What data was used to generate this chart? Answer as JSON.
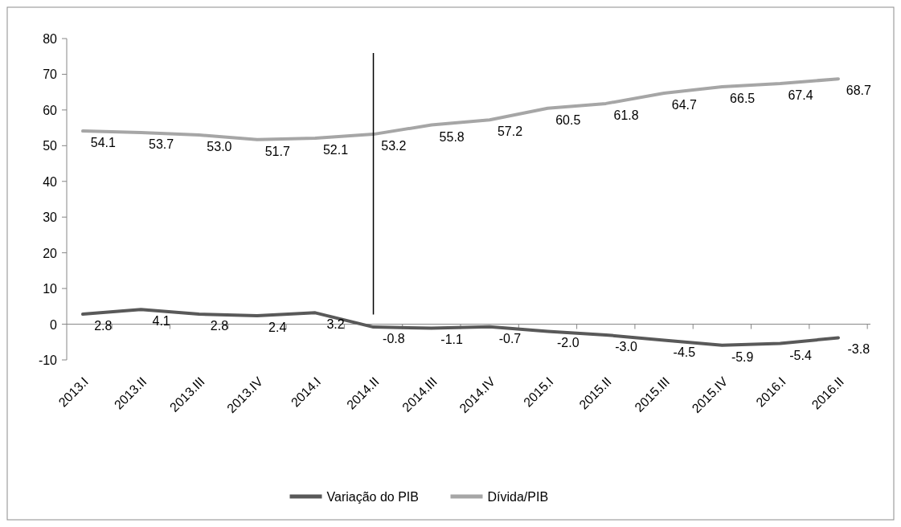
{
  "chart_data": {
    "type": "line",
    "categories": [
      "2013.I",
      "2013.II",
      "2013.III",
      "2013.IV",
      "2014.I",
      "2014.II",
      "2014.III",
      "2014.IV",
      "2015.I",
      "2015.II",
      "2015.III",
      "2015.IV",
      "2016.I",
      "2016.II"
    ],
    "series": [
      {
        "name": "Variação do PIB",
        "color": "#595959",
        "values": [
          2.8,
          4.1,
          2.8,
          2.4,
          3.2,
          -0.8,
          -1.1,
          -0.7,
          -2.0,
          -3.0,
          -4.5,
          -5.9,
          -5.4,
          -3.8
        ],
        "value_labels": [
          "2.8",
          "4.1",
          "2.8",
          "2.4",
          "3.2",
          "-0.8",
          "-1.1",
          "-0.7",
          "-2.0",
          "-3.0",
          "-4.5",
          "-5.9",
          "-5.4",
          "-3.8"
        ]
      },
      {
        "name": "Dívida/PIB",
        "color": "#a6a6a6",
        "values": [
          54.1,
          53.7,
          53.0,
          51.7,
          52.1,
          53.2,
          55.8,
          57.2,
          60.5,
          61.8,
          64.7,
          66.5,
          67.4,
          68.7
        ],
        "value_labels": [
          "54.1",
          "53.7",
          "53.0",
          "51.7",
          "52.1",
          "53.2",
          "55.8",
          "57.2",
          "60.5",
          "61.8",
          "64.7",
          "66.5",
          "67.4",
          "68.7"
        ]
      }
    ],
    "ylim": [
      -10,
      80
    ],
    "yticks": [
      -10,
      0,
      10,
      20,
      30,
      40,
      50,
      60,
      70,
      80
    ],
    "grid": false,
    "legend": "bottom",
    "marker": "none",
    "line_style": "solid",
    "ref_lines": [
      {
        "axis": "x",
        "value": "2014.II",
        "color": "#000000"
      }
    ]
  }
}
